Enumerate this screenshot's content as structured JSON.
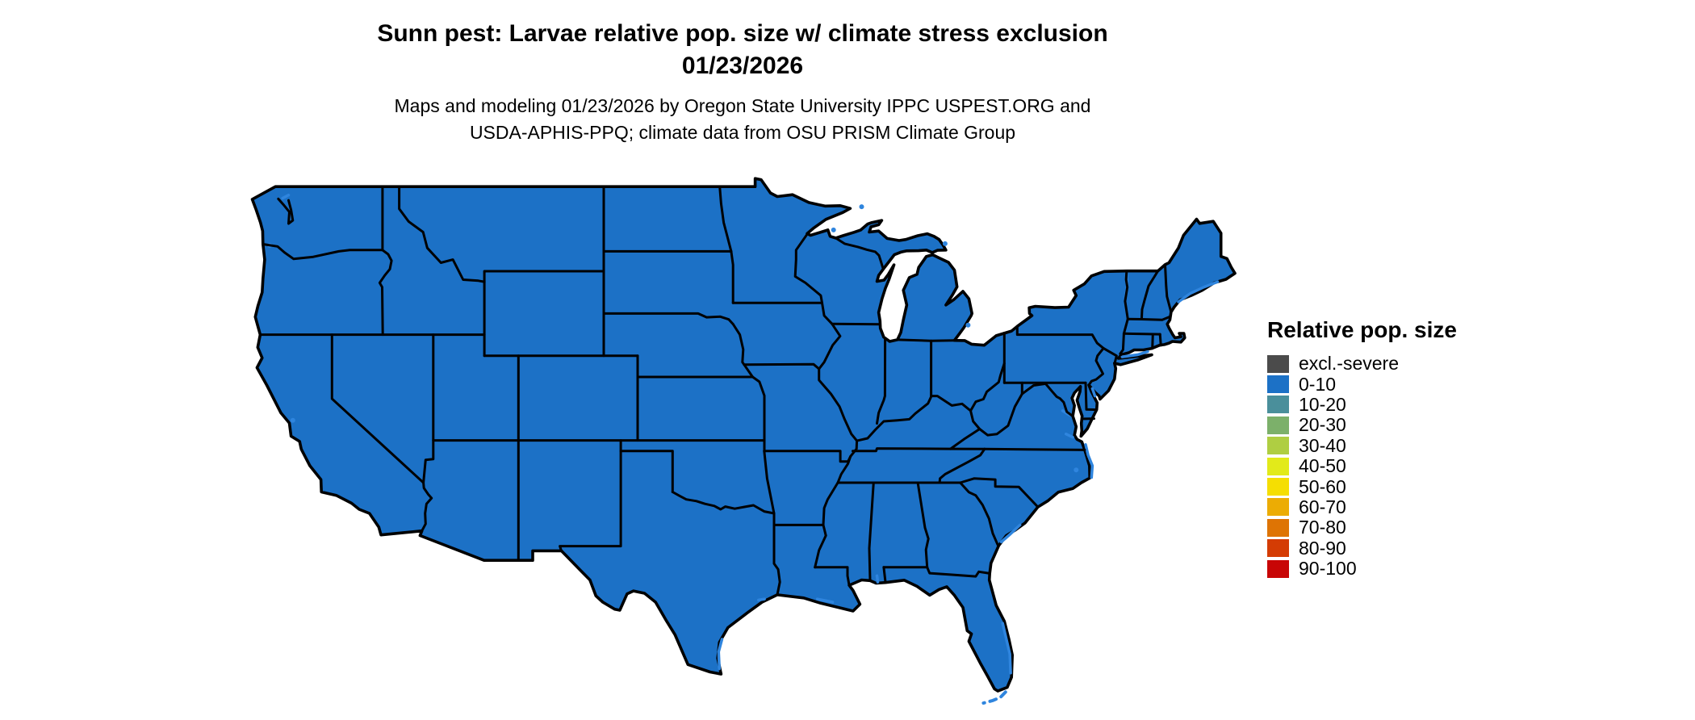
{
  "header": {
    "title_line1": "Sunn pest: Larvae relative pop. size w/ climate stress exclusion",
    "title_line2": "01/23/2026",
    "subtitle_line1": "Maps and modeling 01/23/2026 by Oregon State University IPPC USPEST.ORG and",
    "subtitle_line2": "USDA-APHIS-PPQ; climate data from OSU PRISM Climate Group"
  },
  "legend": {
    "title": "Relative pop. size",
    "items": [
      {
        "label": "excl.-severe",
        "color": "#4B4B4B"
      },
      {
        "label": "0-10",
        "color": "#1C71C6"
      },
      {
        "label": "10-20",
        "color": "#4A8F9B"
      },
      {
        "label": "20-30",
        "color": "#7CB06A"
      },
      {
        "label": "30-40",
        "color": "#AFCE42"
      },
      {
        "label": "40-50",
        "color": "#E2EA1A"
      },
      {
        "label": "50-60",
        "color": "#F5DE02"
      },
      {
        "label": "60-70",
        "color": "#ECAC04"
      },
      {
        "label": "70-80",
        "color": "#DE7404"
      },
      {
        "label": "80-90",
        "color": "#D43C04"
      },
      {
        "label": "90-100",
        "color": "#C80606"
      }
    ]
  },
  "map": {
    "region": "Contiguous United States",
    "all_states_class": "0-10",
    "land_color": "#1C71C6",
    "border_color": "#000000",
    "water_color": "#2F85DE",
    "background_color": "#FFFFFF"
  }
}
